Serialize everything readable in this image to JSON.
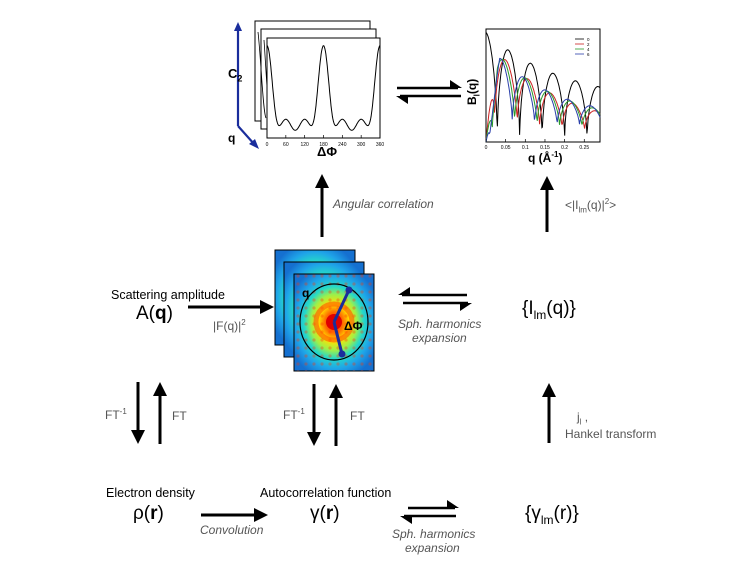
{
  "panel_c2": {
    "y_label": "C",
    "y_label_sub": "2",
    "x_label": "ΔΦ",
    "depth_label": "q",
    "x_ticks": [
      "0",
      "60",
      "120",
      "180",
      "240",
      "300",
      "360"
    ]
  },
  "panel_bl": {
    "y_label": "B",
    "y_label_sub": "l",
    "y_label_tail": "(q)",
    "x_label": "q (Å",
    "x_label_sup": "-1",
    "x_label_tail": ")",
    "x_ticks": [
      "0",
      "0.05",
      "0.1",
      "0.15",
      "0.2",
      "0.25"
    ],
    "legend": [
      "0",
      "2",
      "4",
      "6"
    ],
    "legend_colors": [
      "#000000",
      "#cc2222",
      "#2a9a2a",
      "#2a3faa"
    ]
  },
  "labels": {
    "angular_correlation": "Angular correlation",
    "ilm_sq_pre": "<|I",
    "ilm_sq_sub": "lm",
    "ilm_sq_post": "(q)|",
    "ilm_sq_sup": "2",
    "ilm_sq_end": ">",
    "scattering_amplitude": "Scattering amplitude",
    "amp_pre": "A(",
    "amp_bold": "q",
    "amp_post": ")",
    "fq_pre": "|F(q)|",
    "fq_sup": "2",
    "pattern_q": "q",
    "pattern_dphi": "ΔΦ",
    "ilm_pre": "{I",
    "ilm_sub": "lm",
    "ilm_post": "(q)}",
    "sph_harm_top_1": "Sph. harmonics",
    "sph_harm_top_2": "expansion",
    "ft_inv": "FT",
    "ft_inv_sup": "-1",
    "ft": "FT",
    "jl_pre": "j",
    "jl_sub": "l",
    "jl_post": " ,",
    "hankel": "Hankel transform",
    "electron_density": "Electron density",
    "rho_pre": "ρ(",
    "rho_bold": "r",
    "rho_post": ")",
    "convolution": "Convolution",
    "autocorrelation": "Autocorrelation function",
    "gamma_pre": "γ(",
    "gamma_bold": "r",
    "gamma_post": ")",
    "sph_harm_bot_1": "Sph. harmonics",
    "sph_harm_bot_2": "expansion",
    "glm_pre": "{γ",
    "glm_sub": "lm",
    "glm_post": "(r)}"
  }
}
